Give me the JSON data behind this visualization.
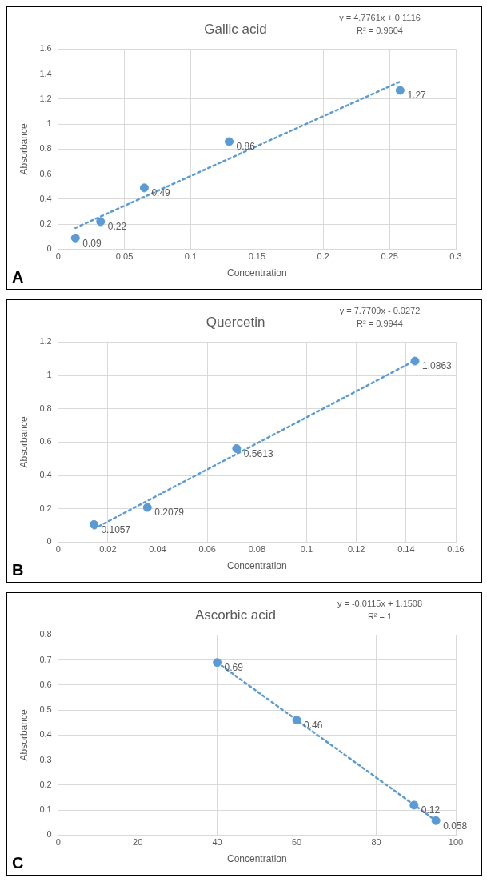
{
  "chart_data": [
    {
      "type": "scatter",
      "title": "Gallic acid",
      "xlabel": "Concentration",
      "ylabel": "Absorbance",
      "xlim": [
        0,
        0.3
      ],
      "xticks": [
        0,
        0.05,
        0.1,
        0.15,
        0.2,
        0.25,
        0.3
      ],
      "ylim": [
        0,
        1.6
      ],
      "yticks": [
        0,
        0.2,
        0.4,
        0.6,
        0.8,
        1,
        1.2,
        1.4,
        1.6
      ],
      "grid": true,
      "annotations": [
        "y = 4.7761x + 0.1116",
        "R² = 0.9604",
        "A"
      ],
      "series": [
        {
          "color": "#5b9bd5",
          "marker": "circle",
          "x": [
            0.013,
            0.032,
            0.065,
            0.129,
            0.258
          ],
          "values": [
            0.09,
            0.22,
            0.49,
            0.86,
            1.27
          ],
          "value_labels": [
            "0.09",
            "0.22",
            "0.49",
            "0.86",
            "1.27"
          ]
        },
        {
          "type": "line",
          "color": "#5b9bd5",
          "line_style": "dotted",
          "x": [
            0.013,
            0.258
          ],
          "values": [
            0.17,
            1.34
          ]
        }
      ]
    },
    {
      "type": "scatter",
      "title": "Quercetin",
      "xlabel": "Concentration",
      "ylabel": "Absorbance",
      "xlim": [
        0,
        0.16
      ],
      "xticks": [
        0,
        0.02,
        0.04,
        0.06,
        0.08,
        0.1,
        0.12,
        0.14,
        0.16
      ],
      "ylim": [
        0,
        1.2
      ],
      "yticks": [
        0,
        0.2,
        0.4,
        0.6,
        0.8,
        1,
        1.2
      ],
      "grid": true,
      "annotations": [
        "y = 7.7709x - 0.0272",
        "R² = 0.9944",
        "B"
      ],
      "series": [
        {
          "color": "#5b9bd5",
          "marker": "circle",
          "x": [
            0.0144,
            0.0359,
            0.0718,
            0.1436
          ],
          "values": [
            0.1057,
            0.2079,
            0.5613,
            1.0863
          ],
          "value_labels": [
            "0.1057",
            "0.2079",
            "0.5613",
            "1.0863"
          ]
        },
        {
          "type": "line",
          "color": "#5b9bd5",
          "line_style": "dotted",
          "x": [
            0.0144,
            0.1436
          ],
          "values": [
            0.08,
            1.09
          ]
        }
      ]
    },
    {
      "type": "scatter",
      "title": "Ascorbic acid",
      "xlabel": "Concentration",
      "ylabel": "Absorbance",
      "xlim": [
        0,
        100
      ],
      "xticks": [
        0,
        20,
        40,
        60,
        80,
        100
      ],
      "ylim": [
        0,
        0.8
      ],
      "yticks": [
        0,
        0.1,
        0.2,
        0.3,
        0.4,
        0.5,
        0.6,
        0.7,
        0.8
      ],
      "grid": true,
      "annotations": [
        "y = -0.0115x + 1.1508",
        "R² = 1",
        "C"
      ],
      "series": [
        {
          "color": "#5b9bd5",
          "marker": "circle",
          "x": [
            40,
            60,
            89.5,
            95
          ],
          "values": [
            0.69,
            0.46,
            0.12,
            0.058
          ],
          "value_labels": [
            "0.69",
            "0.46",
            "0.12",
            "0.058"
          ]
        },
        {
          "type": "line",
          "color": "#5b9bd5",
          "line_style": "dotted",
          "x": [
            40,
            95
          ],
          "values": [
            0.69,
            0.058
          ]
        }
      ]
    }
  ]
}
